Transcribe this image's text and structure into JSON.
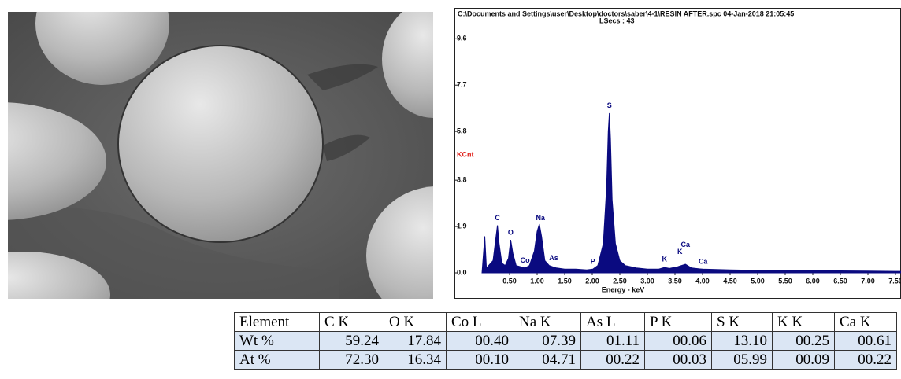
{
  "chart_data": {
    "type": "area",
    "title": "C:\\Documents and Settings\\user\\Desktop\\doctors\\saber\\4-1\\RESIN AFTER.spc  04-Jan-2018 21:05:45",
    "subtitle": "LSecs :  43",
    "ylabel": "KCnt",
    "xlabel": "Energy - keV",
    "color": "#0a0a80",
    "x": [
      0.0,
      0.05,
      0.08,
      0.12,
      0.2,
      0.25,
      0.28,
      0.31,
      0.36,
      0.42,
      0.48,
      0.52,
      0.56,
      0.62,
      0.7,
      0.78,
      0.86,
      0.95,
      1.0,
      1.04,
      1.08,
      1.14,
      1.22,
      1.28,
      1.35,
      1.5,
      1.7,
      1.9,
      2.01,
      2.1,
      2.2,
      2.26,
      2.29,
      2.31,
      2.33,
      2.36,
      2.42,
      2.5,
      2.6,
      2.8,
      3.0,
      3.2,
      3.31,
      3.4,
      3.55,
      3.69,
      3.8,
      4.0,
      4.5,
      5.0,
      5.5,
      6.0,
      6.5,
      7.0,
      7.5,
      7.6
    ],
    "values": [
      0,
      1.5,
      0.2,
      0.3,
      0.5,
      1.4,
      1.95,
      1.2,
      0.4,
      0.3,
      0.6,
      1.35,
      0.8,
      0.3,
      0.25,
      0.2,
      0.3,
      0.9,
      1.7,
      2.0,
      1.5,
      0.5,
      0.3,
      0.25,
      0.2,
      0.15,
      0.15,
      0.12,
      0.15,
      0.3,
      1.2,
      3.5,
      5.8,
      6.55,
      5.5,
      3.0,
      1.2,
      0.5,
      0.3,
      0.2,
      0.15,
      0.15,
      0.22,
      0.18,
      0.25,
      0.35,
      0.2,
      0.15,
      0.12,
      0.1,
      0.1,
      0.08,
      0.08,
      0.07,
      0.06,
      0.06
    ],
    "xlim": [
      -0.5,
      7.6
    ],
    "ylim": [
      0,
      9.9
    ],
    "xticks": [
      {
        "value": 0.5,
        "label": "0.50"
      },
      {
        "value": 1,
        "label": "1.00"
      },
      {
        "value": 1.5,
        "label": "1.50"
      },
      {
        "value": 2,
        "label": "2.00"
      },
      {
        "value": 2.5,
        "label": "2.50"
      },
      {
        "value": 3,
        "label": "3.00"
      },
      {
        "value": 3.5,
        "label": "3.50"
      },
      {
        "value": 4,
        "label": "4.00"
      },
      {
        "value": 4.5,
        "label": "4.50"
      },
      {
        "value": 5,
        "label": "5.00"
      },
      {
        "value": 5.5,
        "label": "5.50"
      },
      {
        "value": 6,
        "label": "6.00"
      },
      {
        "value": 6.5,
        "label": "6.50"
      },
      {
        "value": 7,
        "label": "7.00"
      },
      {
        "value": 7.5,
        "label": "7.50"
      }
    ],
    "yticks": [
      {
        "value": 0,
        "label": "0.0"
      },
      1.9,
      3.8,
      5.8,
      7.7,
      9.6
    ],
    "annotations": [
      {
        "text": "C",
        "x": 0.28,
        "y": 2.05
      },
      {
        "text": "O",
        "x": 0.52,
        "y": 1.45
      },
      {
        "text": "Co",
        "x": 0.78,
        "y": 0.3
      },
      {
        "text": "Na",
        "x": 1.06,
        "y": 2.05
      },
      {
        "text": "As",
        "x": 1.3,
        "y": 0.4
      },
      {
        "text": "P",
        "x": 2.01,
        "y": 0.25
      },
      {
        "text": "S",
        "x": 2.31,
        "y": 6.65
      },
      {
        "text": "K",
        "x": 3.31,
        "y": 0.35
      },
      {
        "text": "K",
        "x": 3.59,
        "y": 0.65
      },
      {
        "text": "Ca",
        "x": 3.69,
        "y": 0.95
      },
      {
        "text": "Ca",
        "x": 4.01,
        "y": 0.25
      }
    ]
  },
  "table": {
    "header": [
      "Element",
      "C K",
      "O K",
      "Co L",
      "Na K",
      "As L",
      "P K",
      "S K",
      "K K",
      "Ca K"
    ],
    "rows": [
      [
        "Wt %",
        "59.24",
        "17.84",
        "00.40",
        "07.39",
        "01.11",
        "00.06",
        "13.10",
        "00.25",
        "00.61"
      ],
      [
        "At %",
        "72.30",
        "16.34",
        "00.10",
        "04.71",
        "00.22",
        "00.03",
        "05.99",
        "00.09",
        "00.22"
      ]
    ]
  }
}
